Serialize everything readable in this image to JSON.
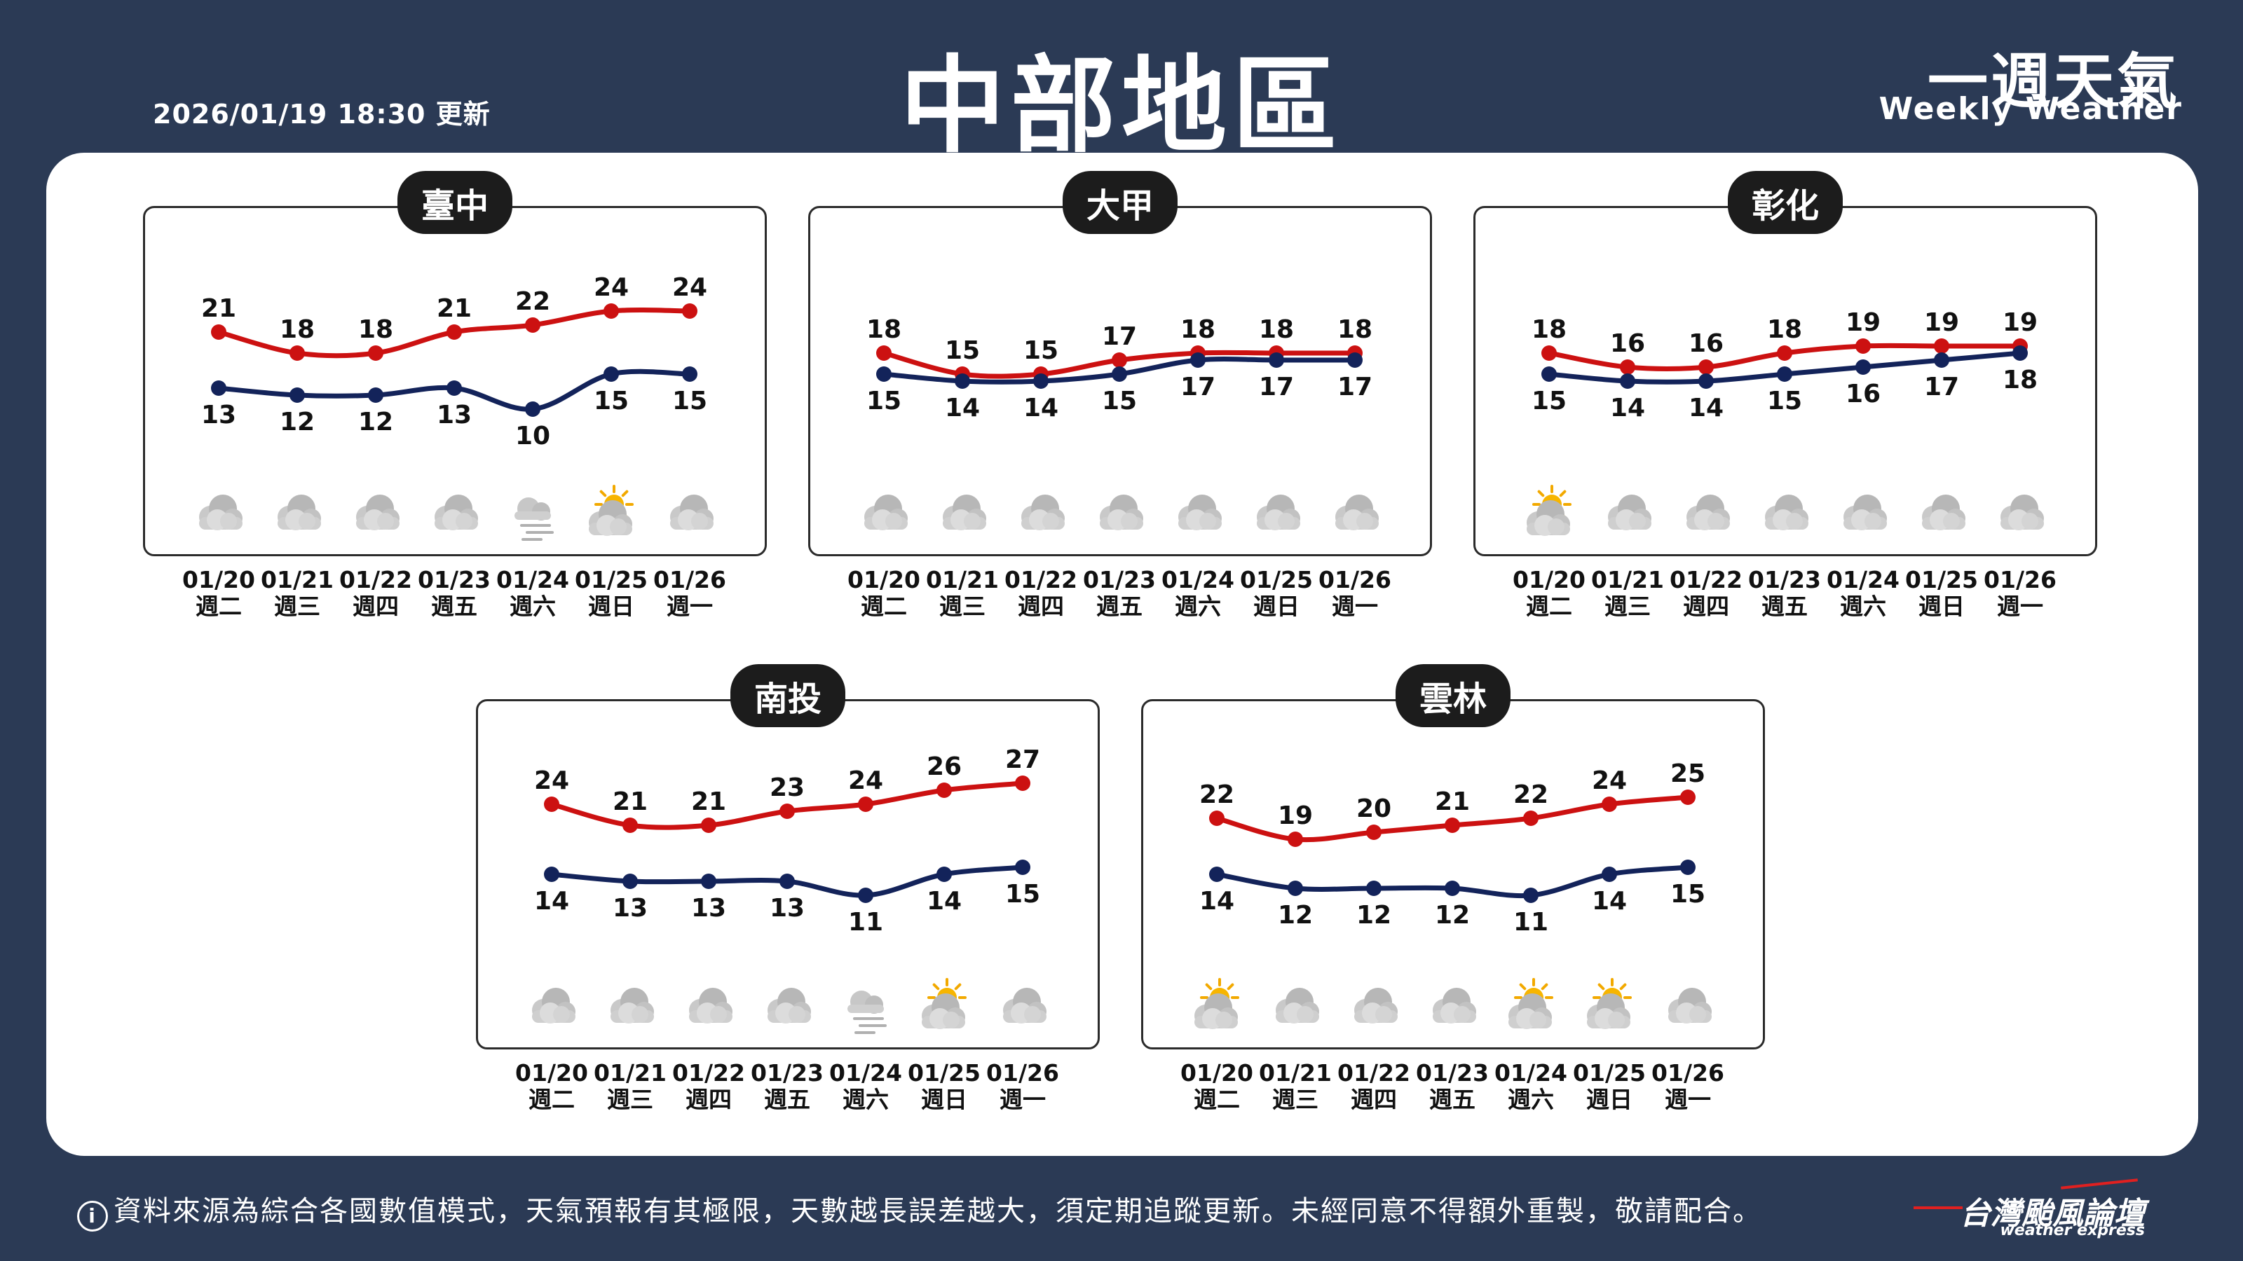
{
  "header": {
    "update_time": "2026/01/19 18:30 更新",
    "region_title": "中部地區",
    "brand_zh": "一週天氣",
    "brand_en": "Weekly Weather"
  },
  "footer": {
    "info_icon": "i",
    "disclaimer": "資料來源為綜合各國數值模式，天氣預報有其極限，天數越長誤差越大，須定期追蹤更新。未經同意不得額外重製，敬請配合。",
    "logo_zh": "台灣颱風論壇",
    "logo_en": "weather express"
  },
  "colors": {
    "high": "#cc1111",
    "low": "#13235a",
    "background": "#2b3a55"
  },
  "chart_data": [
    {
      "type": "line",
      "name": "臺中",
      "x": [
        "01/20",
        "01/21",
        "01/22",
        "01/23",
        "01/24",
        "01/25",
        "01/26"
      ],
      "weekdays": [
        "週二",
        "週三",
        "週四",
        "週五",
        "週六",
        "週日",
        "週一"
      ],
      "series": [
        {
          "values": [
            21,
            18,
            18,
            21,
            22,
            24,
            24
          ]
        },
        {
          "values": [
            13,
            12,
            12,
            13,
            10,
            15,
            15
          ]
        }
      ],
      "icons": [
        "cloudy-icon",
        "cloudy-icon",
        "cloudy-icon",
        "cloudy-icon",
        "fog-icon",
        "partly-sunny-icon",
        "cloudy-icon"
      ]
    },
    {
      "type": "line",
      "name": "大甲",
      "x": [
        "01/20",
        "01/21",
        "01/22",
        "01/23",
        "01/24",
        "01/25",
        "01/26"
      ],
      "weekdays": [
        "週二",
        "週三",
        "週四",
        "週五",
        "週六",
        "週日",
        "週一"
      ],
      "series": [
        {
          "values": [
            18,
            15,
            15,
            17,
            18,
            18,
            18
          ]
        },
        {
          "values": [
            15,
            14,
            14,
            15,
            17,
            17,
            17
          ]
        }
      ],
      "icons": [
        "cloudy-icon",
        "cloudy-icon",
        "cloudy-icon",
        "cloudy-icon",
        "cloudy-icon",
        "cloudy-icon",
        "cloudy-icon"
      ]
    },
    {
      "type": "line",
      "name": "彰化",
      "x": [
        "01/20",
        "01/21",
        "01/22",
        "01/23",
        "01/24",
        "01/25",
        "01/26"
      ],
      "weekdays": [
        "週二",
        "週三",
        "週四",
        "週五",
        "週六",
        "週日",
        "週一"
      ],
      "series": [
        {
          "values": [
            18,
            16,
            16,
            18,
            19,
            19,
            19
          ]
        },
        {
          "values": [
            15,
            14,
            14,
            15,
            16,
            17,
            18
          ]
        }
      ],
      "icons": [
        "partly-sunny-icon",
        "cloudy-icon",
        "cloudy-icon",
        "cloudy-icon",
        "cloudy-icon",
        "cloudy-icon",
        "cloudy-icon"
      ]
    },
    {
      "type": "line",
      "name": "南投",
      "x": [
        "01/20",
        "01/21",
        "01/22",
        "01/23",
        "01/24",
        "01/25",
        "01/26"
      ],
      "weekdays": [
        "週二",
        "週三",
        "週四",
        "週五",
        "週六",
        "週日",
        "週一"
      ],
      "series": [
        {
          "values": [
            24,
            21,
            21,
            23,
            24,
            26,
            27
          ]
        },
        {
          "values": [
            14,
            13,
            13,
            13,
            11,
            14,
            15
          ]
        }
      ],
      "icons": [
        "cloudy-icon",
        "cloudy-icon",
        "cloudy-icon",
        "cloudy-icon",
        "fog-icon",
        "partly-sunny-icon",
        "cloudy-icon"
      ]
    },
    {
      "type": "line",
      "name": "雲林",
      "x": [
        "01/20",
        "01/21",
        "01/22",
        "01/23",
        "01/24",
        "01/25",
        "01/26"
      ],
      "weekdays": [
        "週二",
        "週三",
        "週四",
        "週五",
        "週六",
        "週日",
        "週一"
      ],
      "series": [
        {
          "values": [
            22,
            19,
            20,
            21,
            22,
            24,
            25
          ]
        },
        {
          "values": [
            14,
            12,
            12,
            12,
            11,
            14,
            15
          ]
        }
      ],
      "icons": [
        "partly-sunny-icon",
        "cloudy-icon",
        "cloudy-icon",
        "cloudy-icon",
        "partly-sunny-icon",
        "partly-sunny-icon",
        "cloudy-icon"
      ]
    }
  ]
}
